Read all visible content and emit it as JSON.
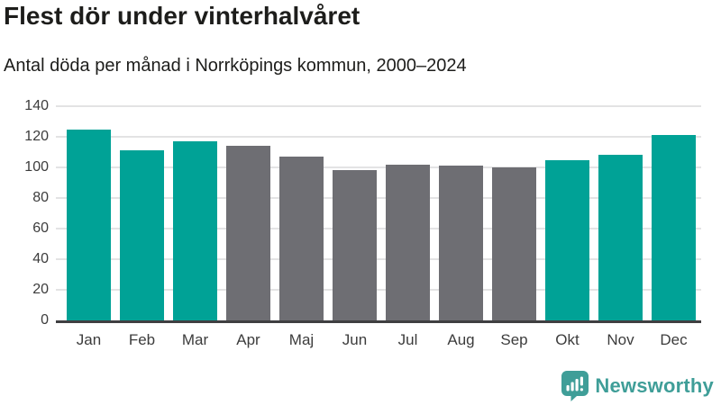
{
  "header": {
    "title": "Flest dör under vinterhalvåret",
    "subtitle": "Antal döda per månad i Norrköpings kommun, 2000–2024"
  },
  "chart_data": {
    "type": "bar",
    "title": "Flest dör under vinterhalvåret",
    "subtitle": "Antal döda per månad i Norrköpings kommun, 2000–2024",
    "categories": [
      "Jan",
      "Feb",
      "Mar",
      "Apr",
      "Maj",
      "Jun",
      "Jul",
      "Aug",
      "Sep",
      "Okt",
      "Nov",
      "Dec"
    ],
    "values": [
      125,
      111,
      117,
      114,
      107,
      98,
      102,
      101,
      100,
      105,
      108,
      121
    ],
    "ylim": [
      0,
      140
    ],
    "yticks": [
      0,
      20,
      40,
      60,
      80,
      100,
      120,
      140
    ],
    "grid": true,
    "legend_position": "none",
    "xlabel": "",
    "ylabel": "",
    "highlight_color": "#00a296",
    "neutral_color": "#6e6e73",
    "highlighted_categories": [
      "Jan",
      "Feb",
      "Mar",
      "Okt",
      "Nov",
      "Dec"
    ]
  },
  "footer": {
    "brand_name": "Newsworthy",
    "brand_color": "#3f9e98",
    "logo_icon": "bar-chart-speech-bubble-icon"
  },
  "colors": {
    "background": "#ffffff",
    "title_text": "#1d1d1b",
    "axis_text": "#3c3c3c",
    "gridline": "#e3e3e4",
    "axis_line": "#3f3f41"
  }
}
